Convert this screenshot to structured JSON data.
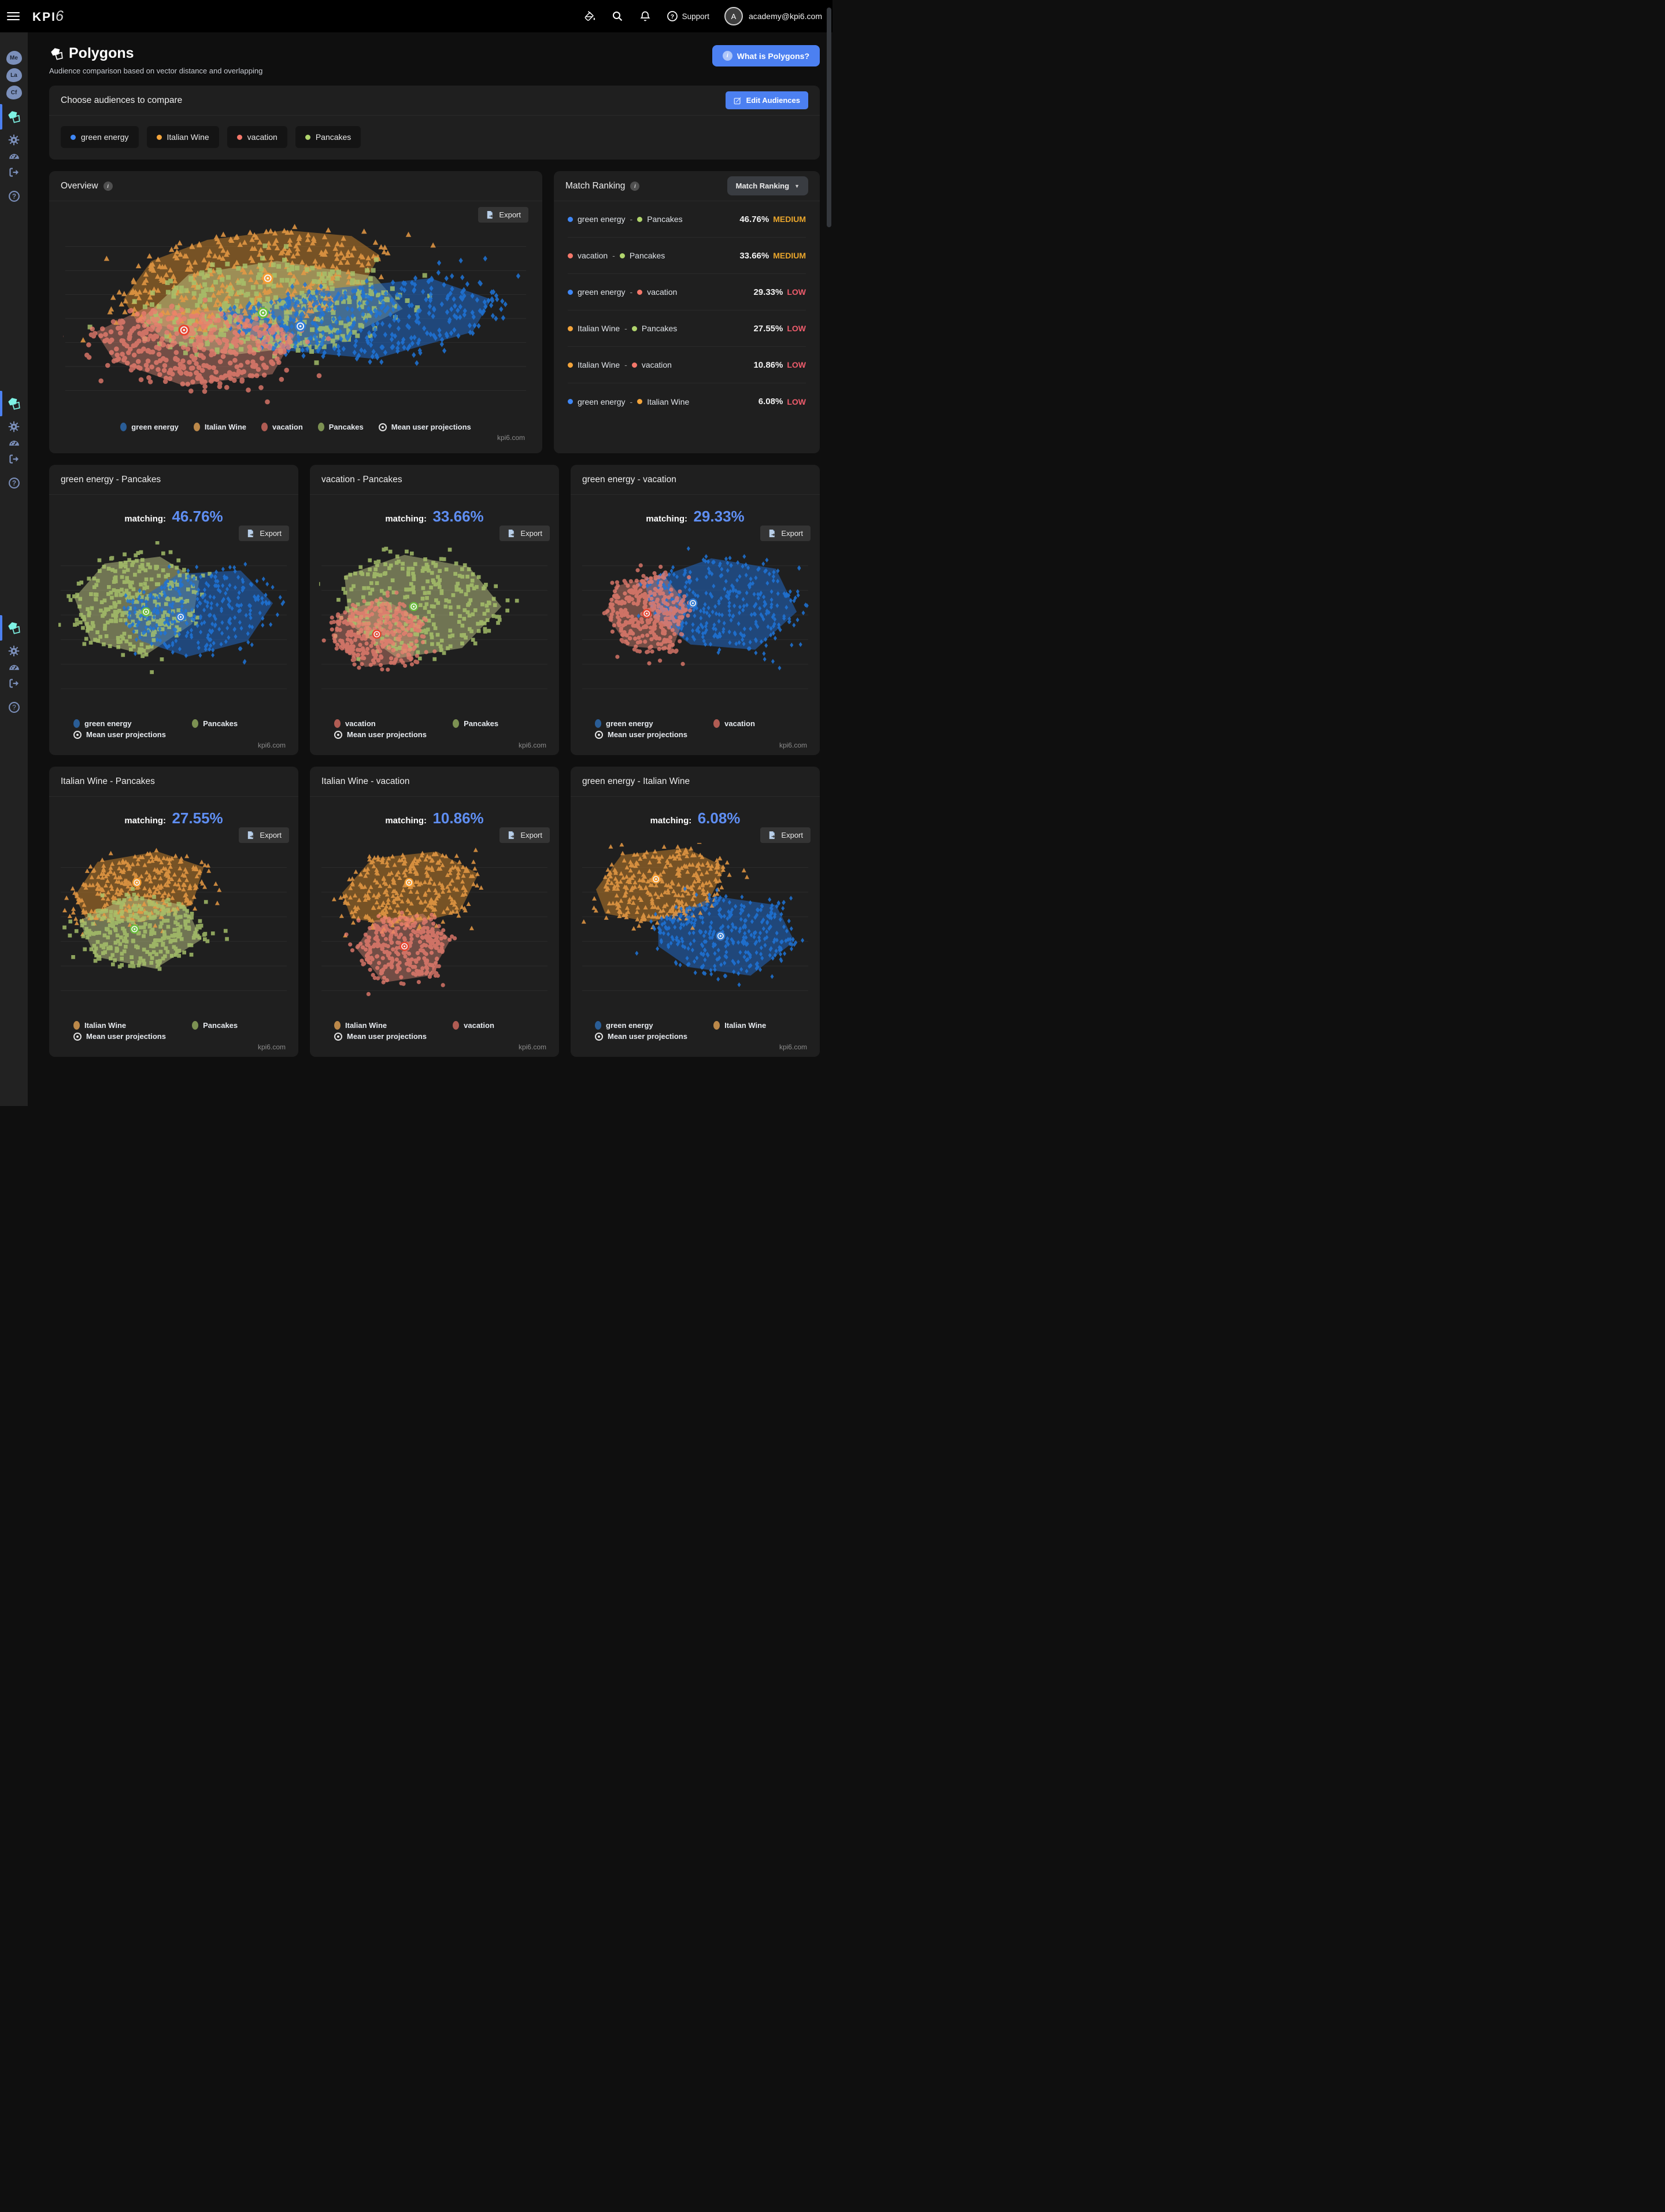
{
  "topbar": {
    "logo_kpi": "KPI",
    "logo_six": "6",
    "support": "Support",
    "avatar_initial": "A",
    "email": "academy@kpi6.com"
  },
  "sidebar": {
    "badges": [
      {
        "label": "Me"
      },
      {
        "label": "La"
      },
      {
        "label": "Cf"
      }
    ]
  },
  "page": {
    "title": "Polygons",
    "subtitle": "Audience comparison based on vector distance and overlapping",
    "what_is_button": "What is Polygons?"
  },
  "labels": {
    "matching": "matching:",
    "export": "Export",
    "mean_projections": "Mean user projections",
    "watermark": "kpi6.com",
    "info": "i"
  },
  "audience_picker": {
    "title": "Choose audiences to compare",
    "edit_button": "Edit Audiences",
    "audiences": [
      {
        "name": "green energy",
        "color": "#3f87f5"
      },
      {
        "name": "Italian Wine",
        "color": "#f3a43b"
      },
      {
        "name": "vacation",
        "color": "#f4776a"
      },
      {
        "name": "Pancakes",
        "color": "#b0d46c"
      }
    ]
  },
  "overview": {
    "title": "Overview",
    "legend": [
      {
        "name": "green energy",
        "color": "#2a5d96"
      },
      {
        "name": "Italian Wine",
        "color": "#bb8849"
      },
      {
        "name": "vacation",
        "color": "#b05c53"
      },
      {
        "name": "Pancakes",
        "color": "#7c9152"
      }
    ]
  },
  "match_ranking": {
    "title": "Match Ranking",
    "dropdown_label": "Match Ranking",
    "separator": "-",
    "rows": [
      {
        "a": "green energy",
        "a_color": "#3f87f5",
        "b": "Pancakes",
        "b_color": "#b0d46c",
        "value": "46.76%",
        "level": "MEDIUM",
        "level_color": "#eaa62c"
      },
      {
        "a": "vacation",
        "a_color": "#f4776a",
        "b": "Pancakes",
        "b_color": "#b0d46c",
        "value": "33.66%",
        "level": "MEDIUM",
        "level_color": "#eaa62c"
      },
      {
        "a": "green energy",
        "a_color": "#3f87f5",
        "b": "vacation",
        "b_color": "#f4776a",
        "value": "29.33%",
        "level": "LOW",
        "level_color": "#ee5c6c"
      },
      {
        "a": "Italian Wine",
        "a_color": "#f3a43b",
        "b": "Pancakes",
        "b_color": "#b0d46c",
        "value": "27.55%",
        "level": "LOW",
        "level_color": "#ee5c6c"
      },
      {
        "a": "Italian Wine",
        "a_color": "#f3a43b",
        "b": "vacation",
        "b_color": "#f4776a",
        "value": "10.86%",
        "level": "LOW",
        "level_color": "#ee5c6c"
      },
      {
        "a": "green energy",
        "a_color": "#3f87f5",
        "b": "Italian Wine",
        "b_color": "#f3a43b",
        "value": "6.08%",
        "level": "LOW",
        "level_color": "#ee5c6c"
      }
    ]
  },
  "comparisons": [
    {
      "title": "green energy - Pancakes",
      "value": "46.76%",
      "a_name": "green energy",
      "a_color": "#2a5d96",
      "b_name": "Pancakes",
      "b_color": "#7c9152",
      "chart_index": 1
    },
    {
      "title": "vacation - Pancakes",
      "value": "33.66%",
      "a_name": "vacation",
      "a_color": "#b05c53",
      "b_name": "Pancakes",
      "b_color": "#7c9152",
      "chart_index": 2
    },
    {
      "title": "green energy - vacation",
      "value": "29.33%",
      "a_name": "green energy",
      "a_color": "#2a5d96",
      "b_name": "vacation",
      "b_color": "#b05c53",
      "chart_index": 3
    },
    {
      "title": "Italian Wine - Pancakes",
      "value": "27.55%",
      "a_name": "Italian Wine",
      "a_color": "#bb8849",
      "b_name": "Pancakes",
      "b_color": "#7c9152",
      "chart_index": 4
    },
    {
      "title": "Italian Wine - vacation",
      "value": "10.86%",
      "a_name": "Italian Wine",
      "a_color": "#bb8849",
      "b_name": "vacation",
      "b_color": "#b05c53",
      "chart_index": 5
    },
    {
      "title": "green energy - Italian Wine",
      "value": "6.08%",
      "a_name": "green energy",
      "a_color": "#2a5d96",
      "b_name": "Italian Wine",
      "b_color": "#bb8849",
      "chart_index": 6
    }
  ],
  "chart_data": [
    {
      "type": "scatter",
      "title": "Overview",
      "grid_lines": 7,
      "marker_size": 5,
      "axes_labeled": false,
      "series": [
        {
          "name": "Italian Wine",
          "marker": "triangle",
          "color": "#e89a44",
          "fill": "#b07429",
          "fill_opacity": 0.6,
          "point_opacity": 0.85,
          "ring_color": "#f59d31",
          "count": 400,
          "centroid": [
            44,
            29
          ],
          "hull": [
            [
              13,
              40
            ],
            [
              19,
              20
            ],
            [
              31,
              9
            ],
            [
              48,
              4
            ],
            [
              62,
              7
            ],
            [
              68,
              17
            ],
            [
              64,
              35
            ],
            [
              51,
              51
            ],
            [
              30,
              57
            ],
            [
              16,
              52
            ]
          ]
        },
        {
          "name": "Pancakes",
          "marker": "square",
          "color": "#a9c46c",
          "fill": "#c8d18b",
          "fill_opacity": 0.48,
          "point_opacity": 0.8,
          "ring_color": "#6abf3a",
          "count": 360,
          "centroid": [
            43,
            47
          ],
          "hull": [
            [
              17,
              50
            ],
            [
              27,
              27
            ],
            [
              46,
              20
            ],
            [
              67,
              28
            ],
            [
              73,
              45
            ],
            [
              58,
              63
            ],
            [
              36,
              69
            ],
            [
              22,
              62
            ]
          ]
        },
        {
          "name": "green energy",
          "marker": "diamond",
          "color": "#1e74d8",
          "fill": "#2068c4",
          "fill_opacity": 0.55,
          "point_opacity": 0.85,
          "ring_color": "#2f7bd6",
          "count": 400,
          "centroid": [
            51,
            54
          ],
          "hull": [
            [
              33,
              48
            ],
            [
              55,
              35
            ],
            [
              79,
              29
            ],
            [
              92,
              40
            ],
            [
              88,
              57
            ],
            [
              67,
              71
            ],
            [
              45,
              66
            ]
          ]
        },
        {
          "name": "vacation",
          "marker": "circle",
          "color": "#ee7f70",
          "fill": "#e58d7a",
          "fill_opacity": 0.42,
          "point_opacity": 0.75,
          "ring_color": "#e8432e",
          "count": 400,
          "centroid": [
            26,
            56
          ],
          "hull": [
            [
              7,
              57
            ],
            [
              18,
              44
            ],
            [
              34,
              46
            ],
            [
              50,
              58
            ],
            [
              45,
              79
            ],
            [
              26,
              85
            ],
            [
              11,
              72
            ]
          ]
        }
      ]
    },
    {
      "type": "scatter",
      "title": "green energy - Pancakes",
      "matching": "46.76%",
      "grid_lines": 6,
      "marker_size": 4.2,
      "axes_labeled": false,
      "series": [
        {
          "name": "Pancakes",
          "marker": "square",
          "color": "#a9c46c",
          "fill": "#c8d18b",
          "fill_opacity": 0.48,
          "point_opacity": 0.8,
          "ring_color": "#6abf3a",
          "count": 300,
          "centroid": [
            38,
            41
          ],
          "hull": [
            [
              7,
              33
            ],
            [
              20,
              13
            ],
            [
              44,
              9
            ],
            [
              61,
              23
            ],
            [
              58,
              48
            ],
            [
              38,
              66
            ],
            [
              14,
              58
            ]
          ]
        },
        {
          "name": "green energy",
          "marker": "diamond",
          "color": "#1e74d8",
          "fill": "#2068c4",
          "fill_opacity": 0.55,
          "point_opacity": 0.85,
          "ring_color": "#2f7bd6",
          "count": 300,
          "centroid": [
            53,
            44
          ],
          "hull": [
            [
              28,
              40
            ],
            [
              52,
              19
            ],
            [
              79,
              17
            ],
            [
              93,
              36
            ],
            [
              82,
              58
            ],
            [
              56,
              67
            ],
            [
              36,
              58
            ]
          ]
        }
      ]
    },
    {
      "type": "scatter",
      "title": "vacation - Pancakes",
      "matching": "33.66%",
      "grid_lines": 6,
      "marker_size": 4.2,
      "axes_labeled": false,
      "series": [
        {
          "name": "Pancakes",
          "marker": "square",
          "color": "#a9c46c",
          "fill": "#c8d18b",
          "fill_opacity": 0.48,
          "point_opacity": 0.8,
          "ring_color": "#6abf3a",
          "count": 290,
          "centroid": [
            41,
            38
          ],
          "hull": [
            [
              11,
              20
            ],
            [
              37,
              8
            ],
            [
              65,
              15
            ],
            [
              79,
              38
            ],
            [
              62,
              62
            ],
            [
              34,
              68
            ],
            [
              13,
              48
            ]
          ]
        },
        {
          "name": "vacation",
          "marker": "circle",
          "color": "#ee7f70",
          "fill": "#e58d7a",
          "fill_opacity": 0.42,
          "point_opacity": 0.75,
          "ring_color": "#e8432e",
          "count": 330,
          "centroid": [
            25,
            54
          ],
          "hull": [
            [
              8,
              43
            ],
            [
              27,
              33
            ],
            [
              45,
              46
            ],
            [
              40,
              70
            ],
            [
              20,
              73
            ],
            [
              6,
              58
            ]
          ]
        }
      ]
    },
    {
      "type": "scatter",
      "title": "green energy - vacation",
      "matching": "29.33%",
      "grid_lines": 6,
      "marker_size": 4.2,
      "axes_labeled": false,
      "series": [
        {
          "name": "green energy",
          "marker": "diamond",
          "color": "#1e74d8",
          "fill": "#2068c4",
          "fill_opacity": 0.55,
          "point_opacity": 0.85,
          "ring_color": "#2f7bd6",
          "count": 330,
          "centroid": [
            49,
            36
          ],
          "hull": [
            [
              28,
              24
            ],
            [
              57,
              10
            ],
            [
              85,
              16
            ],
            [
              94,
              41
            ],
            [
              76,
              63
            ],
            [
              48,
              60
            ],
            [
              32,
              44
            ]
          ]
        },
        {
          "name": "vacation",
          "marker": "circle",
          "color": "#ee7f70",
          "fill": "#e58d7a",
          "fill_opacity": 0.42,
          "point_opacity": 0.75,
          "ring_color": "#e8432e",
          "count": 340,
          "centroid": [
            29,
            42
          ],
          "hull": [
            [
              16,
              26
            ],
            [
              36,
              19
            ],
            [
              47,
              38
            ],
            [
              40,
              63
            ],
            [
              21,
              61
            ],
            [
              11,
              42
            ]
          ]
        }
      ]
    },
    {
      "type": "scatter",
      "title": "Italian Wine - Pancakes",
      "matching": "27.55%",
      "grid_lines": 6,
      "marker_size": 4.2,
      "axes_labeled": false,
      "series": [
        {
          "name": "Italian Wine",
          "marker": "triangle",
          "color": "#e89a44",
          "fill": "#b07429",
          "fill_opacity": 0.6,
          "point_opacity": 0.85,
          "ring_color": "#f59d31",
          "count": 320,
          "centroid": [
            34,
            23
          ],
          "hull": [
            [
              7,
              31
            ],
            [
              17,
              11
            ],
            [
              43,
              5
            ],
            [
              63,
              14
            ],
            [
              58,
              36
            ],
            [
              36,
              46
            ],
            [
              12,
              44
            ]
          ]
        },
        {
          "name": "Pancakes",
          "marker": "square",
          "color": "#a9c46c",
          "fill": "#c8d18b",
          "fill_opacity": 0.48,
          "point_opacity": 0.8,
          "ring_color": "#6abf3a",
          "count": 300,
          "centroid": [
            33,
            50
          ],
          "hull": [
            [
              9,
              45
            ],
            [
              31,
              31
            ],
            [
              55,
              36
            ],
            [
              62,
              56
            ],
            [
              42,
              73
            ],
            [
              16,
              66
            ]
          ]
        }
      ]
    },
    {
      "type": "scatter",
      "title": "Italian Wine - vacation",
      "matching": "10.86%",
      "grid_lines": 6,
      "marker_size": 4.2,
      "axes_labeled": false,
      "series": [
        {
          "name": "Italian Wine",
          "marker": "triangle",
          "color": "#e89a44",
          "fill": "#b07429",
          "fill_opacity": 0.6,
          "point_opacity": 0.85,
          "ring_color": "#f59d31",
          "count": 320,
          "centroid": [
            39,
            23
          ],
          "hull": [
            [
              10,
              29
            ],
            [
              23,
              9
            ],
            [
              51,
              5
            ],
            [
              69,
              18
            ],
            [
              61,
              40
            ],
            [
              38,
              48
            ],
            [
              14,
              44
            ]
          ]
        },
        {
          "name": "vacation",
          "marker": "circle",
          "color": "#ee7f70",
          "fill": "#e58d7a",
          "fill_opacity": 0.42,
          "point_opacity": 0.75,
          "ring_color": "#e8432e",
          "count": 320,
          "centroid": [
            37,
            60
          ],
          "hull": [
            [
              24,
              45
            ],
            [
              45,
              41
            ],
            [
              57,
              56
            ],
            [
              48,
              77
            ],
            [
              28,
              81
            ],
            [
              16,
              61
            ]
          ]
        }
      ]
    },
    {
      "type": "scatter",
      "title": "green energy - Italian Wine",
      "matching": "6.08%",
      "grid_lines": 6,
      "marker_size": 4.2,
      "axes_labeled": false,
      "series": [
        {
          "name": "Italian Wine",
          "marker": "triangle",
          "color": "#e89a44",
          "fill": "#b07429",
          "fill_opacity": 0.6,
          "point_opacity": 0.85,
          "ring_color": "#f59d31",
          "count": 320,
          "centroid": [
            33,
            21
          ],
          "hull": [
            [
              7,
              27
            ],
            [
              18,
              7
            ],
            [
              46,
              3
            ],
            [
              63,
              14
            ],
            [
              55,
              36
            ],
            [
              31,
              46
            ],
            [
              11,
              41
            ]
          ]
        },
        {
          "name": "green energy",
          "marker": "diamond",
          "color": "#1e74d8",
          "fill": "#2068c4",
          "fill_opacity": 0.55,
          "point_opacity": 0.85,
          "ring_color": "#2f7bd6",
          "count": 330,
          "centroid": [
            61,
            54
          ],
          "hull": [
            [
              34,
              45
            ],
            [
              59,
              31
            ],
            [
              85,
              36
            ],
            [
              93,
              57
            ],
            [
              74,
              77
            ],
            [
              47,
              72
            ],
            [
              34,
              60
            ]
          ]
        }
      ]
    }
  ]
}
